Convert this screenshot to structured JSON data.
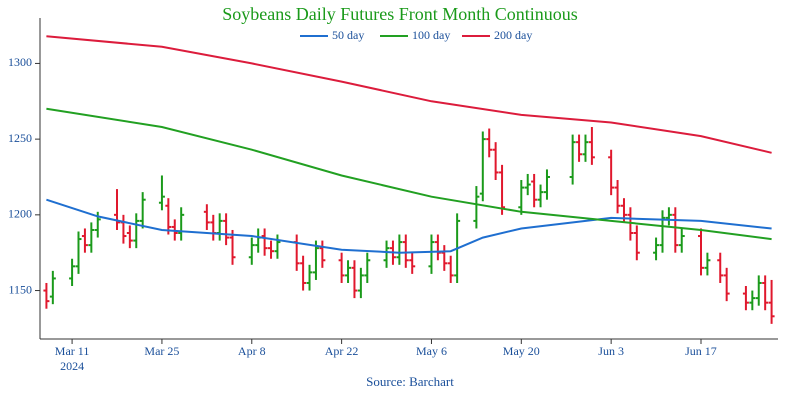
{
  "chart_data": {
    "type": "ohlc",
    "title": "Soybeans Daily Futures Front Month Continuous",
    "source": "Source: Barchart",
    "up_color": "#1a9a1a",
    "down_color": "#e0182d",
    "legend": "top",
    "xlim": [
      "2024-03-06",
      "2024-06-29"
    ],
    "xticks": [
      {
        "value": "2024-03-11",
        "label": "Mar 11\n2024"
      },
      {
        "value": "2024-03-25",
        "label": "Mar 25"
      },
      {
        "value": "2024-04-08",
        "label": "Apr 8"
      },
      {
        "value": "2024-04-22",
        "label": "Apr 22"
      },
      {
        "value": "2024-05-06",
        "label": "May 6"
      },
      {
        "value": "2024-05-20",
        "label": "May 20"
      },
      {
        "value": "2024-06-03",
        "label": "Jun 3"
      },
      {
        "value": "2024-06-17",
        "label": "Jun 17"
      }
    ],
    "ylim": [
      1118,
      1330
    ],
    "yticks": [
      1150,
      1200,
      1250,
      1300
    ],
    "x": [
      "2024-03-07",
      "2024-03-08",
      "2024-03-11",
      "2024-03-12",
      "2024-03-13",
      "2024-03-14",
      "2024-03-15",
      "2024-03-18",
      "2024-03-19",
      "2024-03-20",
      "2024-03-21",
      "2024-03-22",
      "2024-03-25",
      "2024-03-26",
      "2024-03-27",
      "2024-03-28",
      "2024-04-01",
      "2024-04-02",
      "2024-04-03",
      "2024-04-04",
      "2024-04-05",
      "2024-04-08",
      "2024-04-09",
      "2024-04-10",
      "2024-04-11",
      "2024-04-12",
      "2024-04-15",
      "2024-04-16",
      "2024-04-17",
      "2024-04-18",
      "2024-04-19",
      "2024-04-22",
      "2024-04-23",
      "2024-04-24",
      "2024-04-25",
      "2024-04-26",
      "2024-04-29",
      "2024-04-30",
      "2024-05-01",
      "2024-05-02",
      "2024-05-03",
      "2024-05-06",
      "2024-05-07",
      "2024-05-08",
      "2024-05-09",
      "2024-05-10",
      "2024-05-13",
      "2024-05-14",
      "2024-05-15",
      "2024-05-16",
      "2024-05-17",
      "2024-05-20",
      "2024-05-21",
      "2024-05-22",
      "2024-05-23",
      "2024-05-24",
      "2024-05-28",
      "2024-05-29",
      "2024-05-30",
      "2024-05-31",
      "2024-06-03",
      "2024-06-04",
      "2024-06-05",
      "2024-06-06",
      "2024-06-07",
      "2024-06-10",
      "2024-06-11",
      "2024-06-12",
      "2024-06-13",
      "2024-06-14",
      "2024-06-17",
      "2024-06-18",
      "2024-06-20",
      "2024-06-21",
      "2024-06-24",
      "2024-06-25",
      "2024-06-26",
      "2024-06-27",
      "2024-06-28"
    ],
    "open": [
      1150,
      1146,
      1158,
      1166,
      1186,
      1180,
      1190,
      1200,
      1195,
      1188,
      1183,
      1196,
      1208,
      1206,
      1192,
      1188,
      1202,
      1195,
      1188,
      1196,
      1185,
      1172,
      1180,
      1186,
      1178,
      1176,
      1182,
      1168,
      1155,
      1162,
      1178,
      1170,
      1160,
      1165,
      1150,
      1160,
      1170,
      1178,
      1172,
      1182,
      1170,
      1166,
      1182,
      1175,
      1168,
      1160,
      1196,
      1214,
      1250,
      1243,
      1228,
      1205,
      1218,
      1222,
      1210,
      1215,
      1225,
      1248,
      1240,
      1248,
      1238,
      1218,
      1206,
      1200,
      1188,
      1175,
      1180,
      1198,
      1200,
      1180,
      1186,
      1165,
      1170,
      1160,
      1148,
      1142,
      1145,
      1155,
      1142
    ],
    "high": [
      1155,
      1163,
      1171,
      1189,
      1191,
      1195,
      1202,
      1217,
      1200,
      1193,
      1201,
      1215,
      1226,
      1211,
      1197,
      1205,
      1207,
      1200,
      1201,
      1201,
      1190,
      1185,
      1191,
      1191,
      1183,
      1187,
      1187,
      1173,
      1167,
      1183,
      1183,
      1175,
      1170,
      1170,
      1165,
      1175,
      1183,
      1183,
      1187,
      1187,
      1175,
      1187,
      1187,
      1180,
      1173,
      1201,
      1219,
      1255,
      1257,
      1248,
      1233,
      1223,
      1227,
      1227,
      1220,
      1230,
      1253,
      1253,
      1253,
      1258,
      1243,
      1223,
      1211,
      1205,
      1193,
      1185,
      1203,
      1205,
      1205,
      1191,
      1191,
      1175,
      1175,
      1165,
      1153,
      1150,
      1160,
      1160,
      1157
    ],
    "low": [
      1138,
      1141,
      1153,
      1161,
      1175,
      1175,
      1185,
      1190,
      1181,
      1178,
      1178,
      1191,
      1203,
      1187,
      1183,
      1183,
      1190,
      1183,
      1183,
      1180,
      1167,
      1167,
      1175,
      1173,
      1171,
      1171,
      1163,
      1150,
      1150,
      1157,
      1165,
      1155,
      1155,
      1145,
      1145,
      1155,
      1165,
      1167,
      1167,
      1165,
      1161,
      1161,
      1170,
      1163,
      1155,
      1155,
      1191,
      1209,
      1238,
      1223,
      1200,
      1200,
      1213,
      1205,
      1205,
      1210,
      1220,
      1235,
      1235,
      1233,
      1213,
      1201,
      1195,
      1183,
      1170,
      1170,
      1175,
      1193,
      1175,
      1175,
      1160,
      1160,
      1155,
      1143,
      1137,
      1137,
      1140,
      1137,
      1128
    ],
    "close": [
      1143,
      1158,
      1166,
      1184,
      1180,
      1190,
      1197,
      1195,
      1186,
      1183,
      1196,
      1210,
      1212,
      1192,
      1188,
      1200,
      1195,
      1188,
      1196,
      1185,
      1172,
      1180,
      1185,
      1178,
      1176,
      1182,
      1168,
      1155,
      1162,
      1178,
      1170,
      1160,
      1165,
      1150,
      1160,
      1170,
      1178,
      1172,
      1182,
      1170,
      1166,
      1182,
      1175,
      1168,
      1160,
      1196,
      1212,
      1250,
      1243,
      1228,
      1205,
      1218,
      1220,
      1210,
      1215,
      1225,
      1248,
      1240,
      1248,
      1238,
      1218,
      1206,
      1200,
      1188,
      1175,
      1180,
      1198,
      1200,
      1180,
      1186,
      1165,
      1170,
      1160,
      1148,
      1142,
      1145,
      1155,
      1142,
      1133
    ],
    "series": [
      {
        "name": "50 day",
        "color": "#1f6fd0",
        "x": [
          "2024-03-07",
          "2024-03-15",
          "2024-03-25",
          "2024-04-08",
          "2024-04-22",
          "2024-05-01",
          "2024-05-09",
          "2024-05-14",
          "2024-05-20",
          "2024-06-03",
          "2024-06-17",
          "2024-06-28"
        ],
        "values": [
          1210,
          1199,
          1190,
          1186,
          1177,
          1175,
          1176,
          1185,
          1191,
          1198,
          1196,
          1191
        ]
      },
      {
        "name": "100 day",
        "color": "#22a022",
        "x": [
          "2024-03-07",
          "2024-03-25",
          "2024-04-08",
          "2024-04-22",
          "2024-05-06",
          "2024-05-20",
          "2024-06-03",
          "2024-06-17",
          "2024-06-28"
        ],
        "values": [
          1270,
          1258,
          1243,
          1226,
          1212,
          1202,
          1196,
          1190,
          1184
        ]
      },
      {
        "name": "200 day",
        "color": "#dc1c3c",
        "x": [
          "2024-03-07",
          "2024-03-25",
          "2024-04-08",
          "2024-04-22",
          "2024-05-06",
          "2024-05-20",
          "2024-06-03",
          "2024-06-17",
          "2024-06-28"
        ],
        "values": [
          1318,
          1311,
          1300,
          1288,
          1275,
          1266,
          1261,
          1252,
          1241
        ]
      }
    ]
  }
}
